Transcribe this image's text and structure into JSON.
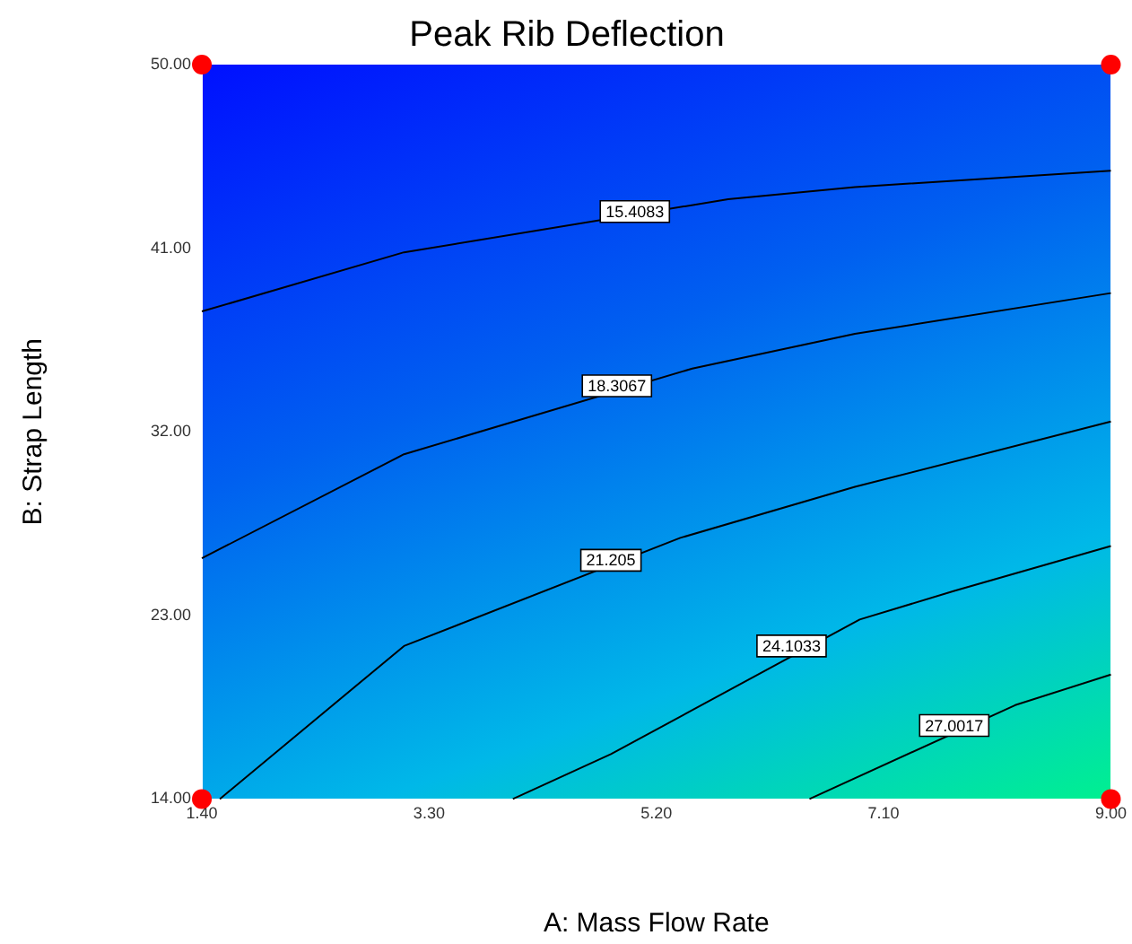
{
  "chart_data": {
    "type": "line",
    "title": "Peak Rib Deflection",
    "xlabel": "A: Mass Flow Rate",
    "ylabel": "B: Strap Length",
    "xlim": [
      1.4,
      9
    ],
    "ylim": [
      14,
      50
    ],
    "xticks": [
      {
        "value": 1.4,
        "label": "1.40"
      },
      {
        "value": 3.3,
        "label": "3.30"
      },
      {
        "value": 5.2,
        "label": "5.20"
      },
      {
        "value": 7.1,
        "label": "7.10"
      },
      {
        "value": 9,
        "label": "9.00"
      }
    ],
    "yticks": [
      {
        "value": 14,
        "label": "14.00"
      },
      {
        "value": 23,
        "label": "23.00"
      },
      {
        "value": 32,
        "label": "32.00"
      },
      {
        "value": 41,
        "label": "41.00"
      },
      {
        "value": 50,
        "label": "50.00"
      }
    ],
    "grid": false,
    "legend": false,
    "marker": "none",
    "line_style": "solid",
    "series": [
      {
        "color": "#000000",
        "x": [
          1.4,
          3.09,
          5.8,
          6.86,
          9
        ],
        "values": [
          37.9,
          40.8,
          43.4,
          44.0,
          44.8
        ]
      },
      {
        "color": "#000000",
        "x": [
          1.4,
          3.09,
          5.5,
          6.86,
          9
        ],
        "values": [
          25.8,
          30.9,
          35.1,
          36.8,
          38.8
        ]
      },
      {
        "color": "#000000",
        "x": [
          1.55,
          3.09,
          5.4,
          6.86,
          9
        ],
        "values": [
          14,
          21.5,
          26.8,
          29.3,
          32.5
        ]
      },
      {
        "color": "#000000",
        "x": [
          4.0,
          4.82,
          6.9,
          7.69,
          9
        ],
        "values": [
          14,
          16.2,
          22.8,
          24.2,
          26.4
        ]
      },
      {
        "color": "#000000",
        "x": [
          6.48,
          8.2,
          9
        ],
        "values": [
          14,
          18.6,
          20.1
        ]
      },
      {
        "type": "scatter",
        "marker": "circle",
        "color": "#ff0000",
        "x": [
          1.4,
          9,
          1.4,
          9
        ],
        "values": [
          14,
          14,
          50,
          50
        ]
      }
    ],
    "annotations": [
      {
        "text": "15.4083",
        "x": 5.02,
        "y": 42.8
      },
      {
        "text": "18.3067",
        "x": 4.87,
        "y": 34.25
      },
      {
        "text": "21.205",
        "x": 4.82,
        "y": 25.7
      },
      {
        "text": "24.1033",
        "x": 6.33,
        "y": 21.5
      },
      {
        "text": "27.0017",
        "x": 7.69,
        "y": 17.6
      }
    ]
  }
}
